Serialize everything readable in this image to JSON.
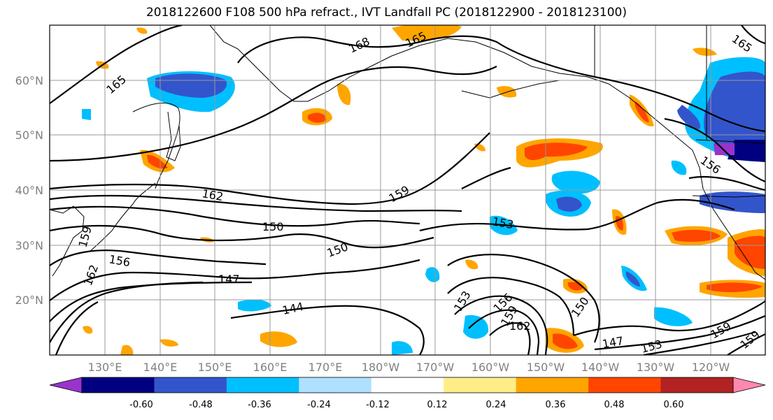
{
  "title": "2018122600 F108 500 hPa refract., IVT Landfall PC (2018122900 - 2018123100)",
  "lat_labels": [
    "60°N",
    "50°N",
    "40°N",
    "30°N",
    "20°N"
  ],
  "lon_labels": [
    "130°E",
    "140°E",
    "150°E",
    "160°E",
    "170°E",
    "180°W",
    "170°W",
    "160°W",
    "150°W",
    "140°W",
    "130°W",
    "120°W"
  ],
  "contour_labels": [
    "165",
    "168",
    "165",
    "165",
    "162",
    "159",
    "150",
    "153",
    "156",
    "159",
    "150",
    "147",
    "144",
    "153",
    "156",
    "159",
    "162",
    "150",
    "147",
    "153",
    "159",
    "159",
    "162",
    "156"
  ],
  "colorbar": {
    "colors": [
      "#9933cc",
      "#000080",
      "#3355cc",
      "#00bfff",
      "#b0e0ff",
      "#ffffff",
      "#ffee88",
      "#ffa500",
      "#ff4500",
      "#b22222",
      "#ff88b0"
    ],
    "tick_labels": [
      "-0.60",
      "-0.48",
      "-0.36",
      "-0.24",
      "-0.12",
      "0.12",
      "0.24",
      "0.36",
      "0.48",
      "0.60"
    ]
  },
  "colors": {
    "grid": "#999999",
    "axis_text": "#808080",
    "contour": "#000000"
  }
}
